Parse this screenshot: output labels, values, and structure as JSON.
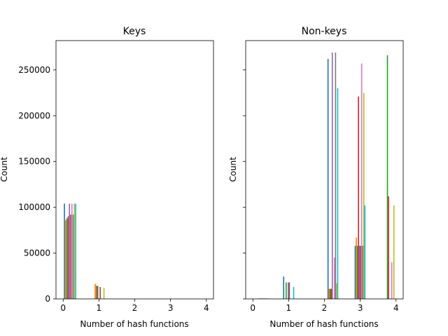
{
  "chart_data": [
    {
      "type": "bar",
      "title": "Keys",
      "xlabel": "Number of hash functions",
      "ylabel": "Count",
      "xlim": [
        -0.2,
        4.2
      ],
      "ylim": [
        0,
        282000
      ],
      "xticks": [
        0,
        1,
        2,
        3,
        4
      ],
      "yticks": [
        0,
        50000,
        100000,
        150000,
        200000,
        250000
      ],
      "ytick_labels": [
        "0",
        "50000",
        "100000",
        "150000",
        "200000",
        "250000"
      ],
      "series": [
        {
          "color": "#1f77b4",
          "bins": [
            {
              "x": 0.035,
              "value": 104000
            },
            {
              "x": 0.86,
              "value": 0
            }
          ]
        },
        {
          "color": "#ff7f0e",
          "bins": [
            {
              "x": 0.07,
              "value": 86000
            },
            {
              "x": 0.895,
              "value": 16500
            }
          ]
        },
        {
          "color": "#2ca02c",
          "bins": [
            {
              "x": 0.105,
              "value": 88000
            },
            {
              "x": 0.93,
              "value": 14500
            }
          ]
        },
        {
          "color": "#d62728",
          "bins": [
            {
              "x": 0.14,
              "value": 90000
            },
            {
              "x": 0.965,
              "value": 14000
            }
          ]
        },
        {
          "color": "#9467bd",
          "bins": [
            {
              "x": 0.175,
              "value": 104000
            },
            {
              "x": 1.0,
              "value": 0
            }
          ]
        },
        {
          "color": "#8c564b",
          "bins": [
            {
              "x": 0.21,
              "value": 92000
            },
            {
              "x": 1.035,
              "value": 13000
            }
          ]
        },
        {
          "color": "#e377c2",
          "bins": [
            {
              "x": 0.245,
              "value": 104000
            },
            {
              "x": 1.07,
              "value": 0
            }
          ]
        },
        {
          "color": "#7f7f7f",
          "bins": [
            {
              "x": 0.28,
              "value": 92000
            },
            {
              "x": 1.105,
              "value": 0
            }
          ]
        },
        {
          "color": "#bcbd22",
          "bins": [
            {
              "x": 0.315,
              "value": 104000
            },
            {
              "x": 1.14,
              "value": 12000
            }
          ]
        },
        {
          "color": "#17becf",
          "bins": [
            {
              "x": 0.35,
              "value": 104000
            },
            {
              "x": 1.175,
              "value": 0
            }
          ]
        }
      ]
    },
    {
      "type": "bar",
      "title": "Non-keys",
      "xlabel": "Number of hash functions",
      "ylabel": "Count",
      "xlim": [
        -0.2,
        4.2
      ],
      "ylim": [
        0,
        282000
      ],
      "xticks": [
        0,
        1,
        2,
        3,
        4
      ],
      "yticks": [
        0,
        50000,
        100000,
        150000,
        200000,
        250000
      ],
      "ytick_labels": [
        "",
        "",
        "",
        "",
        "",
        ""
      ],
      "series": [
        {
          "color": "#1f77b4",
          "bins": [
            {
              "x": 0.17,
              "value": 500
            },
            {
              "x": 0.86,
              "value": 24500
            },
            {
              "x": 2.1,
              "value": 262000
            },
            {
              "x": 2.86,
              "value": 58000
            },
            {
              "x": 3.7,
              "value": 0
            }
          ]
        },
        {
          "color": "#ff7f0e",
          "bins": [
            {
              "x": 0.2,
              "value": 500
            },
            {
              "x": 0.9,
              "value": 0
            },
            {
              "x": 2.13,
              "value": 11000
            },
            {
              "x": 2.89,
              "value": 67000
            },
            {
              "x": 3.73,
              "value": 0
            }
          ]
        },
        {
          "color": "#2ca02c",
          "bins": [
            {
              "x": 0.23,
              "value": 500
            },
            {
              "x": 0.93,
              "value": 18000
            },
            {
              "x": 2.16,
              "value": 11000
            },
            {
              "x": 2.92,
              "value": 58000
            },
            {
              "x": 3.76,
              "value": 266000
            }
          ]
        },
        {
          "color": "#d62728",
          "bins": [
            {
              "x": 0.26,
              "value": 500
            },
            {
              "x": 0.96,
              "value": 0
            },
            {
              "x": 2.19,
              "value": 11000
            },
            {
              "x": 2.95,
              "value": 221000
            },
            {
              "x": 3.79,
              "value": 112000
            }
          ]
        },
        {
          "color": "#9467bd",
          "bins": [
            {
              "x": 0.29,
              "value": 500
            },
            {
              "x": 0.99,
              "value": 18000
            },
            {
              "x": 2.22,
              "value": 269000
            },
            {
              "x": 2.98,
              "value": 58000
            },
            {
              "x": 3.82,
              "value": 0
            }
          ]
        },
        {
          "color": "#8c564b",
          "bins": [
            {
              "x": 0.32,
              "value": 500
            },
            {
              "x": 1.02,
              "value": 18000
            },
            {
              "x": 2.25,
              "value": 0
            },
            {
              "x": 3.01,
              "value": 58000
            },
            {
              "x": 3.85,
              "value": 0
            }
          ]
        },
        {
          "color": "#e377c2",
          "bins": [
            {
              "x": 0.35,
              "value": 500
            },
            {
              "x": 1.05,
              "value": 0
            },
            {
              "x": 2.28,
              "value": 45000
            },
            {
              "x": 3.04,
              "value": 257000
            },
            {
              "x": 3.88,
              "value": 40000
            }
          ]
        },
        {
          "color": "#7f7f7f",
          "bins": [
            {
              "x": 0.38,
              "value": 500
            },
            {
              "x": 1.08,
              "value": 0
            },
            {
              "x": 2.31,
              "value": 269000
            },
            {
              "x": 3.07,
              "value": 58000
            },
            {
              "x": 3.91,
              "value": 0
            }
          ]
        },
        {
          "color": "#bcbd22",
          "bins": [
            {
              "x": 0.41,
              "value": 500
            },
            {
              "x": 1.11,
              "value": 0
            },
            {
              "x": 2.34,
              "value": 17000
            },
            {
              "x": 3.1,
              "value": 225000
            },
            {
              "x": 3.94,
              "value": 102000
            }
          ]
        },
        {
          "color": "#17becf",
          "bins": [
            {
              "x": 0.44,
              "value": 500
            },
            {
              "x": 1.14,
              "value": 13000
            },
            {
              "x": 2.37,
              "value": 230000
            },
            {
              "x": 3.13,
              "value": 102000
            },
            {
              "x": 3.97,
              "value": 0
            }
          ]
        }
      ]
    }
  ]
}
